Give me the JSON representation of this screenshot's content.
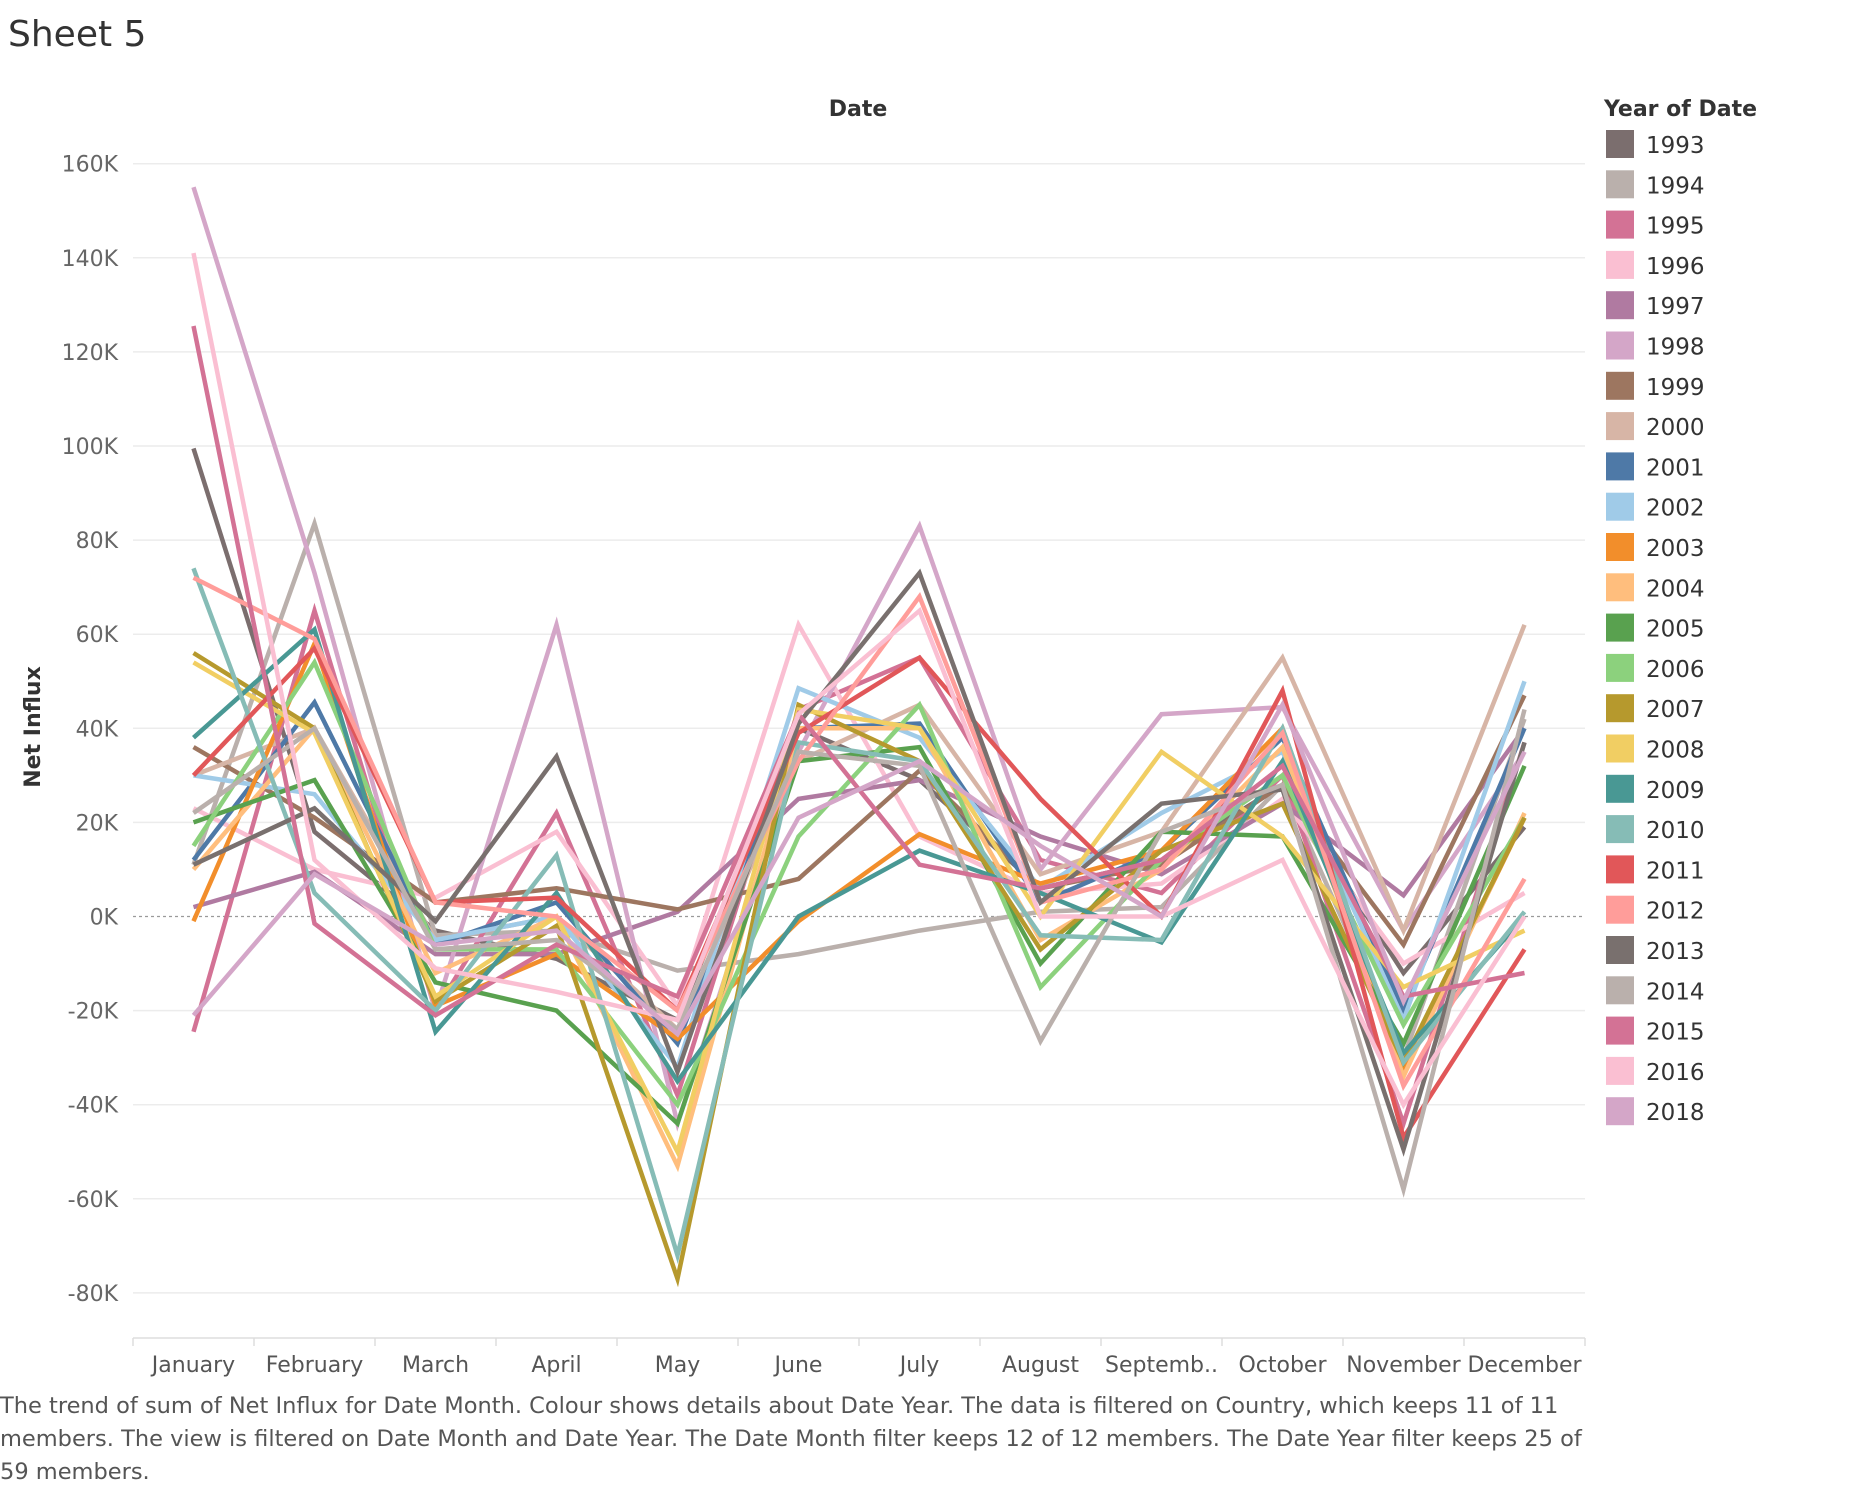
{
  "sheet_title": "Sheet 5",
  "caption": "The trend of sum of Net Influx for Date Month.  Colour shows details about Date Year. The data is filtered on Country, which keeps 11 of 11 members. The view is filtered on Date Month and Date Year. The Date Month filter keeps 12 of 12 members. The Date Year filter keeps 25 of 59 members.",
  "chart_data": {
    "type": "line",
    "column_header": "Date",
    "xlabel": "",
    "ylabel": "Net Influx",
    "legend_title": "Year of Date",
    "legend_position": "right",
    "grid": true,
    "zero_line": true,
    "ylim": [
      -90000,
      160000
    ],
    "yticks": [
      160000,
      140000,
      120000,
      100000,
      80000,
      60000,
      40000,
      20000,
      0,
      -20000,
      -40000,
      -60000,
      -80000
    ],
    "ytick_labels": [
      "160K",
      "140K",
      "120K",
      "100K",
      "80K",
      "60K",
      "40K",
      "20K",
      "0K",
      "-20K",
      "-40K",
      "-60K",
      "-80K"
    ],
    "categories": [
      "January",
      "February",
      "March",
      "April",
      "May",
      "June",
      "July",
      "August",
      "Septemb..",
      "October",
      "November",
      "December"
    ],
    "series": [
      {
        "name": "1993",
        "color": "#7b6e6e",
        "values": [
          99500,
          18000,
          -3000,
          -9000,
          -22000,
          40000,
          29000,
          6000,
          12000,
          28000,
          -12000,
          19000
        ]
      },
      {
        "name": "1994",
        "color": "#bab0ac",
        "values": [
          11000,
          83500,
          -4000,
          -3000,
          -11500,
          -8000,
          -3000,
          1000,
          2000,
          28000,
          -30000,
          42000
        ]
      },
      {
        "name": "1995",
        "color": "#d37295",
        "values": [
          -24500,
          65000,
          -20000,
          22000,
          -38000,
          44000,
          55000,
          12000,
          5000,
          30000,
          -44000,
          37000
        ]
      },
      {
        "name": "1996",
        "color": "#fabfd2",
        "values": [
          23000,
          10000,
          4000,
          18000,
          -19000,
          62000,
          17000,
          5000,
          7000,
          25000,
          -10000,
          5000
        ]
      },
      {
        "name": "1997",
        "color": "#b07aa1",
        "values": [
          2000,
          9500,
          -8000,
          -8000,
          1000,
          25000,
          29000,
          17000,
          9000,
          24000,
          4500,
          40000
        ]
      },
      {
        "name": "1998",
        "color": "#d4a6c8",
        "values": [
          155000,
          73000,
          -20000,
          62000,
          -44000,
          35000,
          83000,
          10000,
          43000,
          44500,
          -3000,
          35000
        ]
      },
      {
        "name": "1999",
        "color": "#9d7660",
        "values": [
          36000,
          21000,
          3000,
          6000,
          1500,
          8000,
          31000,
          6000,
          11000,
          28000,
          -6000,
          47000
        ]
      },
      {
        "name": "2000",
        "color": "#d7b5a6",
        "values": [
          30000,
          40000,
          -5000,
          0,
          -24000,
          33000,
          45000,
          9000,
          18000,
          55000,
          -3000,
          62000
        ]
      },
      {
        "name": "2001",
        "color": "#4e79a7",
        "values": [
          12000,
          45500,
          -6000,
          3000,
          -27000,
          40000,
          41000,
          3000,
          14000,
          38000,
          -20000,
          40000
        ]
      },
      {
        "name": "2002",
        "color": "#a0cbe8",
        "values": [
          30000,
          26000,
          -5000,
          0,
          -32000,
          48500,
          38000,
          6000,
          22000,
          35000,
          -22000,
          50000
        ]
      },
      {
        "name": "2003",
        "color": "#f28e2b",
        "values": [
          -1000,
          58000,
          -19000,
          -8000,
          -26000,
          -1000,
          17500,
          7000,
          14000,
          40000,
          -32000,
          21000
        ]
      },
      {
        "name": "2004",
        "color": "#ffbe7d",
        "values": [
          10000,
          40000,
          -12000,
          0,
          -53000,
          40000,
          40000,
          -5000,
          10000,
          36000,
          -34000,
          22000
        ]
      },
      {
        "name": "2005",
        "color": "#59a14f",
        "values": [
          20000,
          29000,
          -14000,
          -20000,
          -44000,
          33000,
          36000,
          -10000,
          18000,
          17000,
          -27000,
          32000
        ]
      },
      {
        "name": "2006",
        "color": "#8cd17d",
        "values": [
          15000,
          54000,
          -7000,
          -7000,
          -40000,
          17000,
          45000,
          -15000,
          12000,
          30000,
          -23000,
          21000
        ]
      },
      {
        "name": "2007",
        "color": "#b6992d",
        "values": [
          56000,
          40000,
          -18000,
          -2000,
          -77000,
          45000,
          33000,
          -7000,
          14000,
          24000,
          -31000,
          21000
        ]
      },
      {
        "name": "2008",
        "color": "#f1ce63",
        "values": [
          54000,
          39000,
          -17000,
          0,
          -50000,
          44000,
          40000,
          0,
          35000,
          17000,
          -15000,
          -3000
        ]
      },
      {
        "name": "2009",
        "color": "#499894",
        "values": [
          38000,
          61000,
          -24500,
          5000,
          -35000,
          0,
          14000,
          5000,
          -5500,
          33000,
          -29000,
          0
        ]
      },
      {
        "name": "2010",
        "color": "#86bcb6",
        "values": [
          74000,
          5000,
          -20000,
          13000,
          -72000,
          37000,
          33000,
          -4000,
          -5000,
          40000,
          -31000,
          1000
        ]
      },
      {
        "name": "2011",
        "color": "#e15759",
        "values": [
          30000,
          57000,
          3000,
          4000,
          -20000,
          39000,
          55000,
          25000,
          0,
          48000,
          -47000,
          -7000
        ]
      },
      {
        "name": "2012",
        "color": "#ff9d9a",
        "values": [
          72000,
          59000,
          3000,
          0,
          -20000,
          33000,
          68000,
          3000,
          10000,
          39000,
          -36000,
          8000
        ]
      },
      {
        "name": "2013",
        "color": "#79706e",
        "values": [
          11000,
          23000,
          -1000,
          34000,
          -33000,
          41000,
          73000,
          3000,
          24000,
          27000,
          -49500,
          37000
        ]
      },
      {
        "name": "2014",
        "color": "#bab0ac",
        "values": [
          22000,
          40000,
          -7000,
          -5000,
          -24000,
          35000,
          32000,
          -26500,
          18000,
          28000,
          -58000,
          44000
        ]
      },
      {
        "name": "2015",
        "color": "#d37295",
        "values": [
          125500,
          -1500,
          -21000,
          -6000,
          -17000,
          43000,
          11000,
          6000,
          12000,
          32000,
          -17000,
          -12000
        ]
      },
      {
        "name": "2016",
        "color": "#fabfd2",
        "values": [
          141000,
          12000,
          -11000,
          -16000,
          -22000,
          43000,
          65000,
          0,
          0,
          12000,
          -40000,
          0
        ]
      },
      {
        "name": "2018",
        "color": "#d4a6c8",
        "values": [
          -21000,
          9000,
          -6000,
          -3000,
          -25000,
          21000,
          33000,
          15000,
          0,
          45000,
          -18000,
          35000
        ]
      }
    ]
  }
}
